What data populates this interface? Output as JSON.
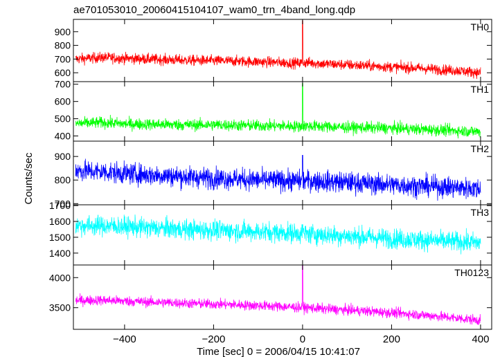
{
  "chart_data": {
    "type": "line",
    "title": "ae701053010_20060415104107_wam0_trn_4band_long.qdp",
    "xlabel": "Time [sec] 0 = 2006/04/15 10:41:07",
    "ylabel": "Counts/sec",
    "xlim": [
      -515,
      425
    ],
    "xticks": [
      -400,
      -200,
      0,
      200,
      400
    ],
    "grid": false,
    "panels": [
      {
        "name": "TH0",
        "color": "#ff0000",
        "ylim": [
          535,
          990
        ],
        "yticks": [
          600,
          700,
          800,
          900
        ],
        "x": [
          -510,
          -450,
          -400,
          -350,
          -300,
          -250,
          -200,
          -150,
          -100,
          -50,
          -10,
          0,
          10,
          50,
          100,
          150,
          200,
          250,
          300,
          350,
          400
        ],
        "values": [
          700,
          712,
          705,
          700,
          695,
          690,
          688,
          685,
          680,
          675,
          670,
          980,
          675,
          665,
          658,
          650,
          642,
          635,
          625,
          615,
          600
        ]
      },
      {
        "name": "TH1",
        "color": "#00ff00",
        "ylim": [
          370,
          715
        ],
        "yticks": [
          400,
          500,
          600,
          700
        ],
        "x": [
          -510,
          -450,
          -400,
          -350,
          -300,
          -250,
          -200,
          -150,
          -100,
          -50,
          -10,
          0,
          10,
          50,
          100,
          150,
          200,
          250,
          300,
          350,
          400
        ],
        "values": [
          472,
          478,
          470,
          468,
          466,
          464,
          465,
          462,
          460,
          458,
          456,
          705,
          458,
          455,
          450,
          448,
          445,
          440,
          435,
          430,
          425
        ]
      },
      {
        "name": "TH2",
        "color": "#0000ff",
        "ylim": [
          695,
          965
        ],
        "yticks": [
          700,
          800,
          900
        ],
        "x": [
          -510,
          -450,
          -400,
          -350,
          -300,
          -250,
          -200,
          -150,
          -100,
          -50,
          -10,
          0,
          10,
          50,
          100,
          150,
          200,
          250,
          300,
          350,
          400
        ],
        "values": [
          840,
          835,
          828,
          822,
          818,
          812,
          808,
          805,
          800,
          798,
          796,
          905,
          798,
          794,
          790,
          785,
          780,
          776,
          772,
          768,
          762
        ]
      },
      {
        "name": "TH3",
        "color": "#00ffff",
        "ylim": [
          1325,
          1705
        ],
        "yticks": [
          1400,
          1500,
          1600,
          1700
        ],
        "x": [
          -510,
          -450,
          -400,
          -350,
          -300,
          -250,
          -200,
          -150,
          -100,
          -50,
          -10,
          0,
          10,
          50,
          100,
          150,
          200,
          250,
          300,
          350,
          400
        ],
        "values": [
          1575,
          1572,
          1568,
          1560,
          1555,
          1548,
          1545,
          1540,
          1535,
          1530,
          1525,
          1580,
          1522,
          1515,
          1508,
          1500,
          1492,
          1485,
          1478,
          1472,
          1465
        ]
      },
      {
        "name": "TH0123",
        "color": "#ff00ff",
        "ylim": [
          3140,
          4210
        ],
        "yticks": [
          3500,
          4000
        ],
        "x": [
          -510,
          -450,
          -400,
          -350,
          -300,
          -250,
          -200,
          -150,
          -100,
          -50,
          -10,
          0,
          10,
          50,
          100,
          150,
          200,
          250,
          300,
          350,
          400
        ],
        "values": [
          3620,
          3625,
          3610,
          3595,
          3585,
          3570,
          3560,
          3548,
          3535,
          3520,
          3505,
          4200,
          3500,
          3480,
          3460,
          3440,
          3415,
          3390,
          3360,
          3325,
          3290
        ]
      }
    ]
  }
}
